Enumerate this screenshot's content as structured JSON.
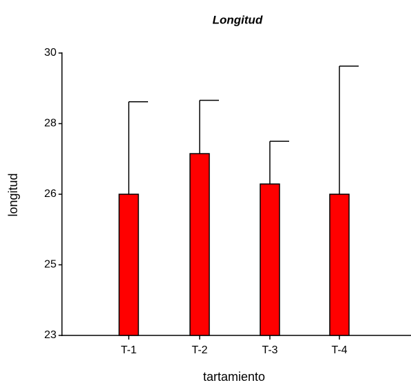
{
  "chart_data": {
    "type": "bar",
    "title": "Longitud",
    "x_label": "tartamiento",
    "y_label": "longitud",
    "categories": [
      "T-1",
      "T-2",
      "T-3",
      "T-4"
    ],
    "values": [
      26,
      27.15,
      26.29,
      26
    ],
    "errors": [
      2.62,
      1.51,
      1.21,
      3.63
    ],
    "color": "#ff0000",
    "ylim": [
      23,
      30
    ],
    "yticks": [
      30,
      28,
      26,
      25,
      23
    ]
  }
}
